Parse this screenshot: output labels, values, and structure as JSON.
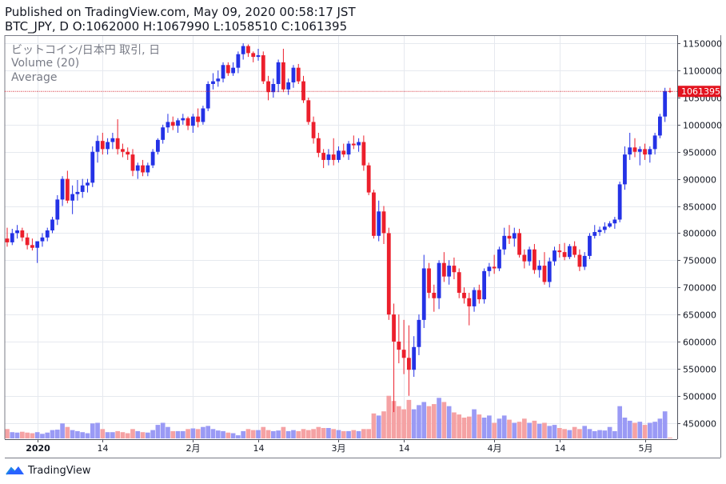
{
  "header": {
    "line1": "Published on TradingView.com, May 09, 2020 00:58:17 JST",
    "symbol": "BTC_JPY, D",
    "ohlc": "O:1062000 H:1067990 L:1058510 C:1061395"
  },
  "legend": {
    "title": "ビットコイン/日本円 取引, 日",
    "volume": "Volume (20)",
    "average": "Average"
  },
  "footer": {
    "brand": "TradingView"
  },
  "colors": {
    "up": "#2432e6",
    "down": "#ec1f2c",
    "volume_up": "#9a9af5",
    "volume_down": "#f5a2a4",
    "grid": "#e6e9ef",
    "price_line": "#d1121f",
    "price_tag": "#e3141f"
  },
  "chart_data": {
    "type": "candlestick",
    "ylim": [
      420000,
      1165000
    ],
    "y_ticks": [
      450000,
      500000,
      550000,
      600000,
      650000,
      700000,
      750000,
      800000,
      850000,
      900000,
      950000,
      1000000,
      1050000,
      1100000,
      1150000
    ],
    "y_tick_labels": [
      "450000",
      "500000",
      "550000",
      "600000",
      "650000",
      "700000",
      "750000",
      "800000",
      "850000",
      "900000",
      "950000",
      "1000000",
      "1050000",
      "1100000",
      "1150000"
    ],
    "x_ticks": [
      {
        "index": 6,
        "label": "2020",
        "bold": true
      },
      {
        "index": 19,
        "label": "14"
      },
      {
        "index": 37,
        "label": "2月"
      },
      {
        "index": 50,
        "label": "14"
      },
      {
        "index": 66,
        "label": "3月"
      },
      {
        "index": 79,
        "label": "14"
      },
      {
        "index": 97,
        "label": "4月"
      },
      {
        "index": 110,
        "label": "14"
      },
      {
        "index": 127,
        "label": "5月"
      }
    ],
    "current_price": 1061395,
    "current_price_label": "1061395",
    "candles": [
      {
        "o": 790000,
        "h": 810000,
        "l": 775000,
        "c": 783000,
        "v": 0.45
      },
      {
        "o": 783000,
        "h": 808000,
        "l": 778000,
        "c": 800000,
        "v": 0.3
      },
      {
        "o": 800000,
        "h": 815000,
        "l": 790000,
        "c": 805000,
        "v": 0.28
      },
      {
        "o": 805000,
        "h": 810000,
        "l": 785000,
        "c": 792000,
        "v": 0.32
      },
      {
        "o": 792000,
        "h": 800000,
        "l": 770000,
        "c": 778000,
        "v": 0.28
      },
      {
        "o": 778000,
        "h": 790000,
        "l": 768000,
        "c": 773000,
        "v": 0.25
      },
      {
        "o": 773000,
        "h": 785000,
        "l": 745000,
        "c": 785000,
        "v": 0.3
      },
      {
        "o": 785000,
        "h": 800000,
        "l": 775000,
        "c": 792000,
        "v": 0.22
      },
      {
        "o": 792000,
        "h": 810000,
        "l": 785000,
        "c": 805000,
        "v": 0.28
      },
      {
        "o": 805000,
        "h": 830000,
        "l": 800000,
        "c": 825000,
        "v": 0.4
      },
      {
        "o": 825000,
        "h": 870000,
        "l": 815000,
        "c": 862000,
        "v": 0.42
      },
      {
        "o": 862000,
        "h": 905000,
        "l": 850000,
        "c": 900000,
        "v": 0.72
      },
      {
        "o": 900000,
        "h": 915000,
        "l": 855000,
        "c": 860000,
        "v": 0.55
      },
      {
        "o": 860000,
        "h": 888000,
        "l": 835000,
        "c": 872000,
        "v": 0.4
      },
      {
        "o": 872000,
        "h": 898000,
        "l": 860000,
        "c": 876000,
        "v": 0.35
      },
      {
        "o": 876000,
        "h": 900000,
        "l": 865000,
        "c": 888000,
        "v": 0.3
      },
      {
        "o": 888000,
        "h": 900000,
        "l": 875000,
        "c": 893000,
        "v": 0.25
      },
      {
        "o": 893000,
        "h": 960000,
        "l": 885000,
        "c": 950000,
        "v": 0.72
      },
      {
        "o": 950000,
        "h": 980000,
        "l": 930000,
        "c": 970000,
        "v": 0.75
      },
      {
        "o": 970000,
        "h": 985000,
        "l": 945000,
        "c": 955000,
        "v": 0.45
      },
      {
        "o": 955000,
        "h": 975000,
        "l": 945000,
        "c": 968000,
        "v": 0.3
      },
      {
        "o": 968000,
        "h": 985000,
        "l": 955000,
        "c": 975000,
        "v": 0.3
      },
      {
        "o": 975000,
        "h": 1010000,
        "l": 945000,
        "c": 955000,
        "v": 0.35
      },
      {
        "o": 955000,
        "h": 965000,
        "l": 940000,
        "c": 950000,
        "v": 0.3
      },
      {
        "o": 950000,
        "h": 958000,
        "l": 935000,
        "c": 945000,
        "v": 0.25
      },
      {
        "o": 945000,
        "h": 955000,
        "l": 905000,
        "c": 915000,
        "v": 0.45
      },
      {
        "o": 915000,
        "h": 930000,
        "l": 900000,
        "c": 925000,
        "v": 0.35
      },
      {
        "o": 925000,
        "h": 935000,
        "l": 905000,
        "c": 912000,
        "v": 0.3
      },
      {
        "o": 912000,
        "h": 930000,
        "l": 905000,
        "c": 925000,
        "v": 0.28
      },
      {
        "o": 925000,
        "h": 955000,
        "l": 920000,
        "c": 950000,
        "v": 0.4
      },
      {
        "o": 950000,
        "h": 975000,
        "l": 945000,
        "c": 972000,
        "v": 0.65
      },
      {
        "o": 972000,
        "h": 1000000,
        "l": 965000,
        "c": 995000,
        "v": 0.75
      },
      {
        "o": 995000,
        "h": 1020000,
        "l": 985000,
        "c": 1005000,
        "v": 0.55
      },
      {
        "o": 1005000,
        "h": 1015000,
        "l": 990000,
        "c": 998000,
        "v": 0.35
      },
      {
        "o": 998000,
        "h": 1012000,
        "l": 985000,
        "c": 1008000,
        "v": 0.35
      },
      {
        "o": 1008000,
        "h": 1020000,
        "l": 1000000,
        "c": 1012000,
        "v": 0.35
      },
      {
        "o": 1012000,
        "h": 1015000,
        "l": 990000,
        "c": 998000,
        "v": 0.45
      },
      {
        "o": 998000,
        "h": 1020000,
        "l": 985000,
        "c": 1015000,
        "v": 0.48
      },
      {
        "o": 1015000,
        "h": 1030000,
        "l": 995000,
        "c": 1005000,
        "v": 0.45
      },
      {
        "o": 1005000,
        "h": 1035000,
        "l": 1000000,
        "c": 1030000,
        "v": 0.55
      },
      {
        "o": 1030000,
        "h": 1080000,
        "l": 1025000,
        "c": 1075000,
        "v": 0.6
      },
      {
        "o": 1075000,
        "h": 1095000,
        "l": 1065000,
        "c": 1080000,
        "v": 0.45
      },
      {
        "o": 1080000,
        "h": 1100000,
        "l": 1070000,
        "c": 1085000,
        "v": 0.38
      },
      {
        "o": 1085000,
        "h": 1115000,
        "l": 1078000,
        "c": 1110000,
        "v": 0.35
      },
      {
        "o": 1110000,
        "h": 1115000,
        "l": 1090000,
        "c": 1095000,
        "v": 0.28
      },
      {
        "o": 1095000,
        "h": 1115000,
        "l": 1090000,
        "c": 1105000,
        "v": 0.25
      },
      {
        "o": 1105000,
        "h": 1135000,
        "l": 1095000,
        "c": 1130000,
        "v": 0.15
      },
      {
        "o": 1130000,
        "h": 1150000,
        "l": 1120000,
        "c": 1145000,
        "v": 0.35
      },
      {
        "o": 1145000,
        "h": 1148000,
        "l": 1125000,
        "c": 1132000,
        "v": 0.45
      },
      {
        "o": 1132000,
        "h": 1135000,
        "l": 1115000,
        "c": 1125000,
        "v": 0.4
      },
      {
        "o": 1125000,
        "h": 1140000,
        "l": 1118000,
        "c": 1128000,
        "v": 0.4
      },
      {
        "o": 1128000,
        "h": 1135000,
        "l": 1075000,
        "c": 1080000,
        "v": 0.55
      },
      {
        "o": 1080000,
        "h": 1090000,
        "l": 1045000,
        "c": 1060000,
        "v": 0.4
      },
      {
        "o": 1060000,
        "h": 1085000,
        "l": 1050000,
        "c": 1075000,
        "v": 0.35
      },
      {
        "o": 1075000,
        "h": 1120000,
        "l": 1060000,
        "c": 1115000,
        "v": 0.38
      },
      {
        "o": 1115000,
        "h": 1140000,
        "l": 1060000,
        "c": 1065000,
        "v": 0.55
      },
      {
        "o": 1065000,
        "h": 1085000,
        "l": 1055000,
        "c": 1078000,
        "v": 0.35
      },
      {
        "o": 1078000,
        "h": 1110000,
        "l": 1068000,
        "c": 1105000,
        "v": 0.4
      },
      {
        "o": 1105000,
        "h": 1112000,
        "l": 1075000,
        "c": 1080000,
        "v": 0.35
      },
      {
        "o": 1080000,
        "h": 1090000,
        "l": 1040000,
        "c": 1045000,
        "v": 0.45
      },
      {
        "o": 1045000,
        "h": 1050000,
        "l": 1000000,
        "c": 1005000,
        "v": 0.4
      },
      {
        "o": 1005000,
        "h": 1015000,
        "l": 965000,
        "c": 975000,
        "v": 0.45
      },
      {
        "o": 975000,
        "h": 985000,
        "l": 940000,
        "c": 948000,
        "v": 0.55
      },
      {
        "o": 948000,
        "h": 955000,
        "l": 920000,
        "c": 935000,
        "v": 0.5
      },
      {
        "o": 935000,
        "h": 955000,
        "l": 925000,
        "c": 945000,
        "v": 0.5
      },
      {
        "o": 945000,
        "h": 975000,
        "l": 925000,
        "c": 935000,
        "v": 0.45
      },
      {
        "o": 935000,
        "h": 960000,
        "l": 930000,
        "c": 952000,
        "v": 0.4
      },
      {
        "o": 952000,
        "h": 965000,
        "l": 940000,
        "c": 945000,
        "v": 0.35
      },
      {
        "o": 945000,
        "h": 970000,
        "l": 935000,
        "c": 965000,
        "v": 0.35
      },
      {
        "o": 965000,
        "h": 980000,
        "l": 955000,
        "c": 962000,
        "v": 0.4
      },
      {
        "o": 962000,
        "h": 975000,
        "l": 950000,
        "c": 968000,
        "v": 0.35
      },
      {
        "o": 968000,
        "h": 980000,
        "l": 915000,
        "c": 925000,
        "v": 0.45
      },
      {
        "o": 925000,
        "h": 930000,
        "l": 870000,
        "c": 875000,
        "v": 0.45
      },
      {
        "o": 875000,
        "h": 880000,
        "l": 790000,
        "c": 795000,
        "v": 1.2
      },
      {
        "o": 795000,
        "h": 860000,
        "l": 785000,
        "c": 840000,
        "v": 1.1
      },
      {
        "o": 840000,
        "h": 850000,
        "l": 780000,
        "c": 800000,
        "v": 1.3
      },
      {
        "o": 800000,
        "h": 810000,
        "l": 640000,
        "c": 650000,
        "v": 2.05
      },
      {
        "o": 650000,
        "h": 670000,
        "l": 470000,
        "c": 600000,
        "v": 1.8
      },
      {
        "o": 600000,
        "h": 650000,
        "l": 560000,
        "c": 585000,
        "v": 1.55
      },
      {
        "o": 585000,
        "h": 640000,
        "l": 540000,
        "c": 570000,
        "v": 1.4
      },
      {
        "o": 570000,
        "h": 630000,
        "l": 500000,
        "c": 548000,
        "v": 1.85
      },
      {
        "o": 548000,
        "h": 610000,
        "l": 535000,
        "c": 590000,
        "v": 1.4
      },
      {
        "o": 590000,
        "h": 650000,
        "l": 575000,
        "c": 640000,
        "v": 1.6
      },
      {
        "o": 640000,
        "h": 760000,
        "l": 625000,
        "c": 735000,
        "v": 1.75
      },
      {
        "o": 735000,
        "h": 745000,
        "l": 680000,
        "c": 690000,
        "v": 1.55
      },
      {
        "o": 690000,
        "h": 705000,
        "l": 655000,
        "c": 680000,
        "v": 1.65
      },
      {
        "o": 680000,
        "h": 750000,
        "l": 660000,
        "c": 745000,
        "v": 1.95
      },
      {
        "o": 745000,
        "h": 765000,
        "l": 710000,
        "c": 720000,
        "v": 1.75
      },
      {
        "o": 720000,
        "h": 750000,
        "l": 705000,
        "c": 740000,
        "v": 1.55
      },
      {
        "o": 740000,
        "h": 755000,
        "l": 715000,
        "c": 728000,
        "v": 1.25
      },
      {
        "o": 728000,
        "h": 735000,
        "l": 680000,
        "c": 690000,
        "v": 1.15
      },
      {
        "o": 690000,
        "h": 700000,
        "l": 670000,
        "c": 680000,
        "v": 1.0
      },
      {
        "o": 680000,
        "h": 690000,
        "l": 630000,
        "c": 665000,
        "v": 1.05
      },
      {
        "o": 665000,
        "h": 700000,
        "l": 655000,
        "c": 695000,
        "v": 1.4
      },
      {
        "o": 695000,
        "h": 705000,
        "l": 670000,
        "c": 678000,
        "v": 1.15
      },
      {
        "o": 678000,
        "h": 735000,
        "l": 670000,
        "c": 730000,
        "v": 1.0
      },
      {
        "o": 730000,
        "h": 745000,
        "l": 720000,
        "c": 738000,
        "v": 1.1
      },
      {
        "o": 738000,
        "h": 760000,
        "l": 725000,
        "c": 735000,
        "v": 0.75
      },
      {
        "o": 735000,
        "h": 775000,
        "l": 730000,
        "c": 770000,
        "v": 0.95
      },
      {
        "o": 770000,
        "h": 810000,
        "l": 760000,
        "c": 795000,
        "v": 1.1
      },
      {
        "o": 795000,
        "h": 815000,
        "l": 780000,
        "c": 790000,
        "v": 0.9
      },
      {
        "o": 790000,
        "h": 810000,
        "l": 775000,
        "c": 800000,
        "v": 0.75
      },
      {
        "o": 800000,
        "h": 808000,
        "l": 755000,
        "c": 760000,
        "v": 0.8
      },
      {
        "o": 760000,
        "h": 770000,
        "l": 735000,
        "c": 748000,
        "v": 0.95
      },
      {
        "o": 748000,
        "h": 775000,
        "l": 740000,
        "c": 770000,
        "v": 0.75
      },
      {
        "o": 770000,
        "h": 780000,
        "l": 725000,
        "c": 732000,
        "v": 0.85
      },
      {
        "o": 732000,
        "h": 750000,
        "l": 718000,
        "c": 740000,
        "v": 0.7
      },
      {
        "o": 740000,
        "h": 765000,
        "l": 705000,
        "c": 710000,
        "v": 0.75
      },
      {
        "o": 710000,
        "h": 755000,
        "l": 700000,
        "c": 748000,
        "v": 0.6
      },
      {
        "o": 748000,
        "h": 775000,
        "l": 740000,
        "c": 768000,
        "v": 0.65
      },
      {
        "o": 768000,
        "h": 780000,
        "l": 755000,
        "c": 765000,
        "v": 0.5
      },
      {
        "o": 765000,
        "h": 782000,
        "l": 750000,
        "c": 756000,
        "v": 0.45
      },
      {
        "o": 756000,
        "h": 780000,
        "l": 752000,
        "c": 776000,
        "v": 0.4
      },
      {
        "o": 776000,
        "h": 785000,
        "l": 755000,
        "c": 760000,
        "v": 0.55
      },
      {
        "o": 760000,
        "h": 770000,
        "l": 730000,
        "c": 738000,
        "v": 0.45
      },
      {
        "o": 738000,
        "h": 765000,
        "l": 732000,
        "c": 758000,
        "v": 0.6
      },
      {
        "o": 758000,
        "h": 800000,
        "l": 752000,
        "c": 795000,
        "v": 0.45
      },
      {
        "o": 795000,
        "h": 815000,
        "l": 790000,
        "c": 802000,
        "v": 0.35
      },
      {
        "o": 802000,
        "h": 812000,
        "l": 795000,
        "c": 806000,
        "v": 0.4
      },
      {
        "o": 806000,
        "h": 820000,
        "l": 800000,
        "c": 812000,
        "v": 0.38
      },
      {
        "o": 812000,
        "h": 822000,
        "l": 810000,
        "c": 818000,
        "v": 0.55
      },
      {
        "o": 818000,
        "h": 830000,
        "l": 808000,
        "c": 825000,
        "v": 0.35
      },
      {
        "o": 825000,
        "h": 895000,
        "l": 820000,
        "c": 890000,
        "v": 1.55
      },
      {
        "o": 890000,
        "h": 960000,
        "l": 880000,
        "c": 945000,
        "v": 1.0
      },
      {
        "o": 945000,
        "h": 985000,
        "l": 935000,
        "c": 958000,
        "v": 0.85
      },
      {
        "o": 958000,
        "h": 975000,
        "l": 940000,
        "c": 950000,
        "v": 0.75
      },
      {
        "o": 950000,
        "h": 960000,
        "l": 925000,
        "c": 955000,
        "v": 0.8
      },
      {
        "o": 955000,
        "h": 965000,
        "l": 935000,
        "c": 945000,
        "v": 0.65
      },
      {
        "o": 945000,
        "h": 960000,
        "l": 930000,
        "c": 955000,
        "v": 0.75
      },
      {
        "o": 955000,
        "h": 985000,
        "l": 945000,
        "c": 980000,
        "v": 0.8
      },
      {
        "o": 980000,
        "h": 1020000,
        "l": 975000,
        "c": 1015000,
        "v": 0.95
      },
      {
        "o": 1015000,
        "h": 1068000,
        "l": 1005000,
        "c": 1062000,
        "v": 1.3
      },
      {
        "o": 1062000,
        "h": 1067990,
        "l": 1058510,
        "c": 1061395,
        "v": 0.04
      }
    ]
  }
}
